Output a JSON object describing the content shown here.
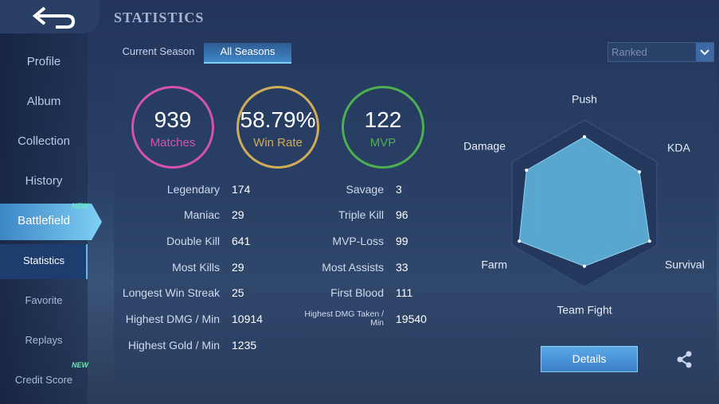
{
  "header": {
    "title": "STATISTICS"
  },
  "sidebar": {
    "items": [
      {
        "label": "Profile"
      },
      {
        "label": "Album"
      },
      {
        "label": "Collection"
      },
      {
        "label": "History"
      },
      {
        "label": "Battlefield",
        "badge": "NEW"
      },
      {
        "label": "Statistics"
      },
      {
        "label": "Favorite"
      },
      {
        "label": "Replays"
      },
      {
        "label": "Credit Score",
        "badge": "NEW"
      }
    ]
  },
  "tabs": [
    "Current Season",
    "All Seasons"
  ],
  "dropdown": "Ranked",
  "summary": [
    {
      "value": "939",
      "label": "Matches",
      "color": "#d452b0"
    },
    {
      "value": "58.79%",
      "label": "Win Rate",
      "color": "#d2ad58"
    },
    {
      "value": "122",
      "label": "MVP",
      "color": "#4cb050"
    }
  ],
  "stats": {
    "left": [
      [
        "Legendary",
        174
      ],
      [
        "Maniac",
        29
      ],
      [
        "Double Kill",
        641
      ],
      [
        "Most Kills",
        29
      ],
      [
        "Longest Win Streak",
        25
      ],
      [
        "Highest DMG / Min",
        10914
      ],
      [
        "Highest Gold / Min",
        1235
      ]
    ],
    "right": [
      [
        "Savage",
        3
      ],
      [
        "Triple Kill",
        96
      ],
      [
        "MVP-Loss",
        99
      ],
      [
        "Most Assists",
        33
      ],
      [
        "First Blood",
        111
      ],
      [
        "Highest DMG Taken / Min",
        19540
      ]
    ]
  },
  "radar": {
    "axes": [
      "Push",
      "KDA",
      "Survival",
      "Team Fight",
      "Farm",
      "Damage"
    ],
    "values": [
      80,
      76,
      90,
      75,
      90,
      80
    ],
    "rlim": [
      0,
      100
    ]
  },
  "buttons": {
    "details": "Details"
  }
}
